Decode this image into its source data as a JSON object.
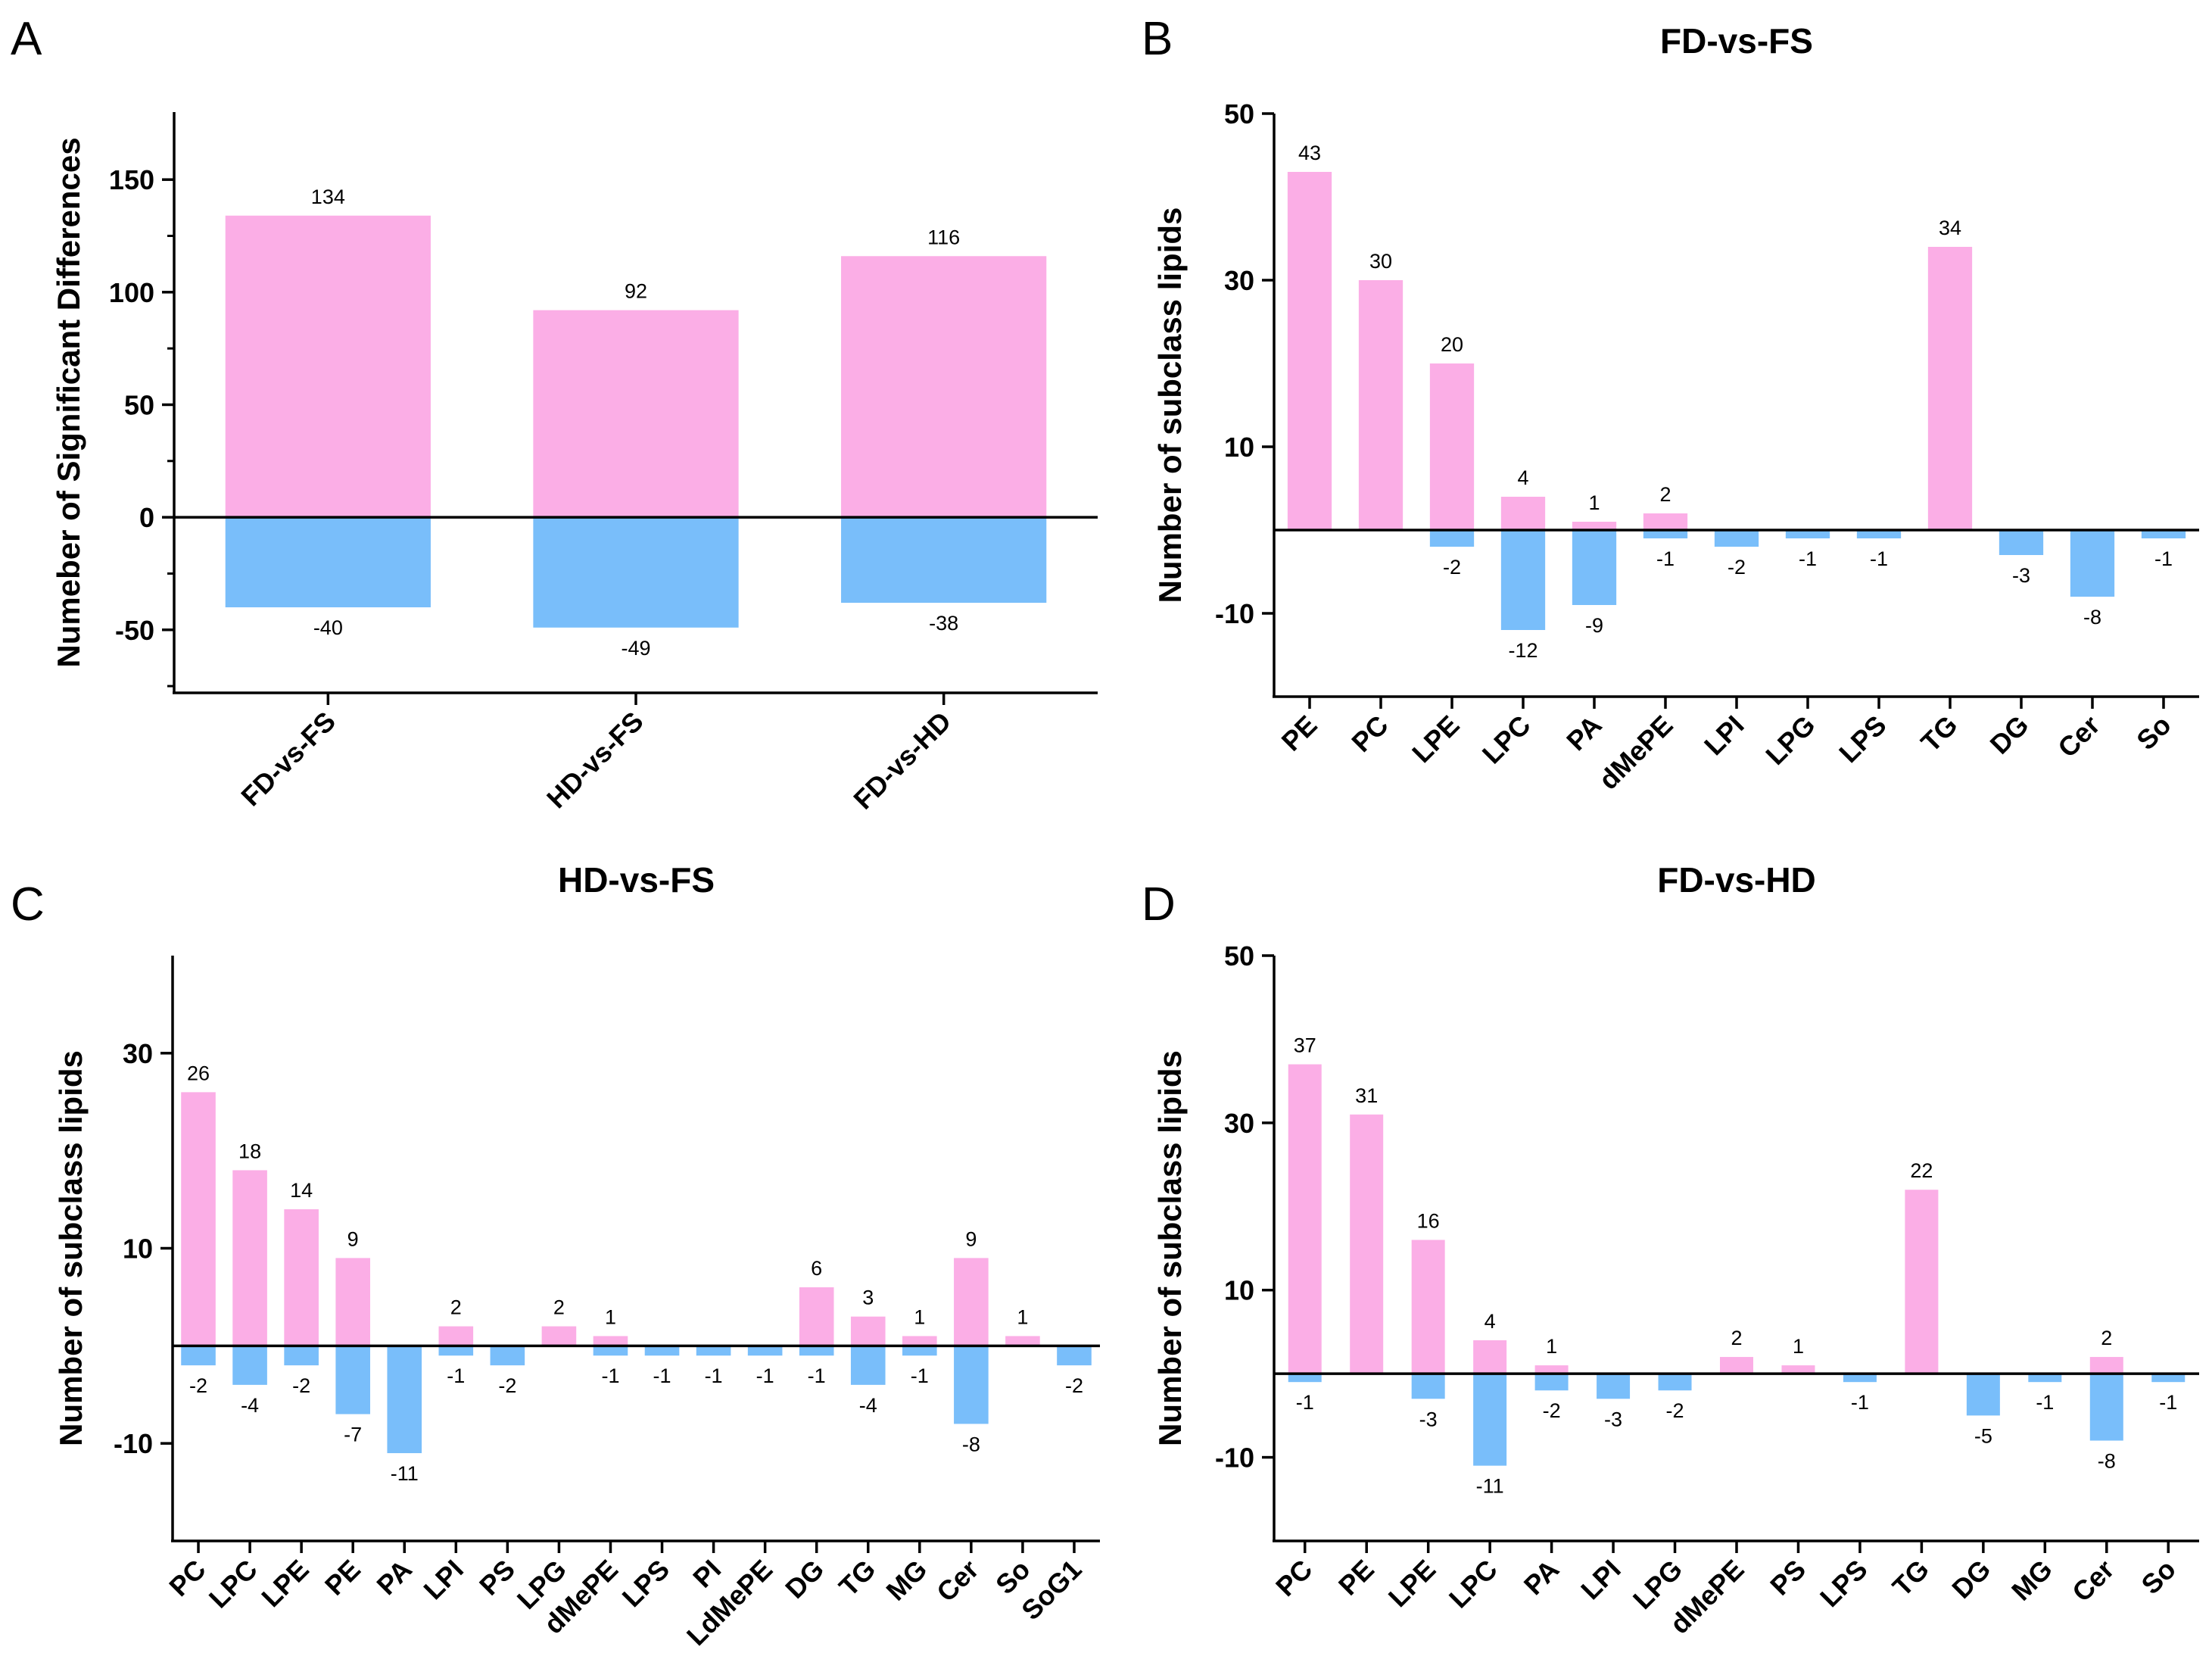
{
  "colors": {
    "positive": "#FBAEE6",
    "negative": "#79BEFA",
    "axis": "#000000"
  },
  "chart_data": [
    {
      "panel": "A",
      "type": "bar",
      "title": "",
      "ylabel": "Numeber of Significant Differences",
      "xlabel": "",
      "ylim": [
        -78,
        180
      ],
      "yticks": [
        150,
        100,
        50,
        0,
        -50
      ],
      "minor_ticks": [
        125,
        75,
        25,
        -25,
        -75
      ],
      "categories": [
        "FD-vs-FS",
        "HD-vs-FS",
        "FD-vs-HD"
      ],
      "series": [
        {
          "name": "up",
          "values": [
            134,
            92,
            116
          ]
        },
        {
          "name": "down",
          "values": [
            -40,
            -49,
            -38
          ]
        }
      ]
    },
    {
      "panel": "B",
      "type": "bar",
      "title": "FD-vs-FS",
      "ylabel": "Number of subclass lipids",
      "xlabel": "",
      "ylim": [
        -20,
        50
      ],
      "yticks": [
        50,
        30,
        10,
        -10
      ],
      "categories": [
        "PE",
        "PC",
        "LPE",
        "LPC",
        "PA",
        "dMePE",
        "LPI",
        "LPG",
        "LPS",
        "TG",
        "DG",
        "Cer",
        "So"
      ],
      "series": [
        {
          "name": "up",
          "values": [
            43,
            30,
            20,
            4,
            1,
            2,
            null,
            null,
            null,
            34,
            null,
            null,
            null
          ]
        },
        {
          "name": "down",
          "values": [
            null,
            null,
            -2,
            -12,
            -9,
            -1,
            -2,
            -1,
            -1,
            null,
            -3,
            -8,
            -1
          ]
        }
      ]
    },
    {
      "panel": "C",
      "type": "bar",
      "title": "HD-vs-FS",
      "ylabel": "Number of subclass lipids",
      "xlabel": "",
      "ylim": [
        -20,
        40
      ],
      "yticks": [
        30,
        10,
        -10
      ],
      "categories": [
        "PC",
        "LPC",
        "LPE",
        "PE",
        "PA",
        "LPI",
        "PS",
        "LPG",
        "dMePE",
        "LPS",
        "PI",
        "LdMePE",
        "DG",
        "TG",
        "MG",
        "Cer",
        "So",
        "SoG1"
      ],
      "series": [
        {
          "name": "up",
          "values": [
            26,
            18,
            14,
            9,
            null,
            2,
            null,
            2,
            1,
            null,
            null,
            null,
            6,
            3,
            1,
            9,
            1,
            null
          ]
        },
        {
          "name": "down",
          "values": [
            -2,
            -4,
            -2,
            -7,
            -11,
            -1,
            -2,
            null,
            -1,
            -1,
            -1,
            -1,
            -1,
            -4,
            -1,
            -8,
            null,
            -2
          ]
        }
      ]
    },
    {
      "panel": "D",
      "type": "bar",
      "title": "FD-vs-HD",
      "ylabel": "Number of subclass lipids",
      "xlabel": "",
      "ylim": [
        -20,
        50
      ],
      "yticks": [
        50,
        30,
        10,
        -10
      ],
      "categories": [
        "PC",
        "PE",
        "LPE",
        "LPC",
        "PA",
        "LPI",
        "LPG",
        "dMePE",
        "PS",
        "LPS",
        "TG",
        "DG",
        "MG",
        "Cer",
        "So"
      ],
      "series": [
        {
          "name": "up",
          "values": [
            37,
            31,
            16,
            4,
            1,
            null,
            null,
            2,
            1,
            null,
            22,
            null,
            null,
            2,
            null
          ]
        },
        {
          "name": "down",
          "values": [
            -1,
            null,
            -3,
            -11,
            -2,
            -3,
            -2,
            null,
            null,
            -1,
            null,
            -5,
            -1,
            -8,
            -1
          ]
        }
      ]
    }
  ]
}
